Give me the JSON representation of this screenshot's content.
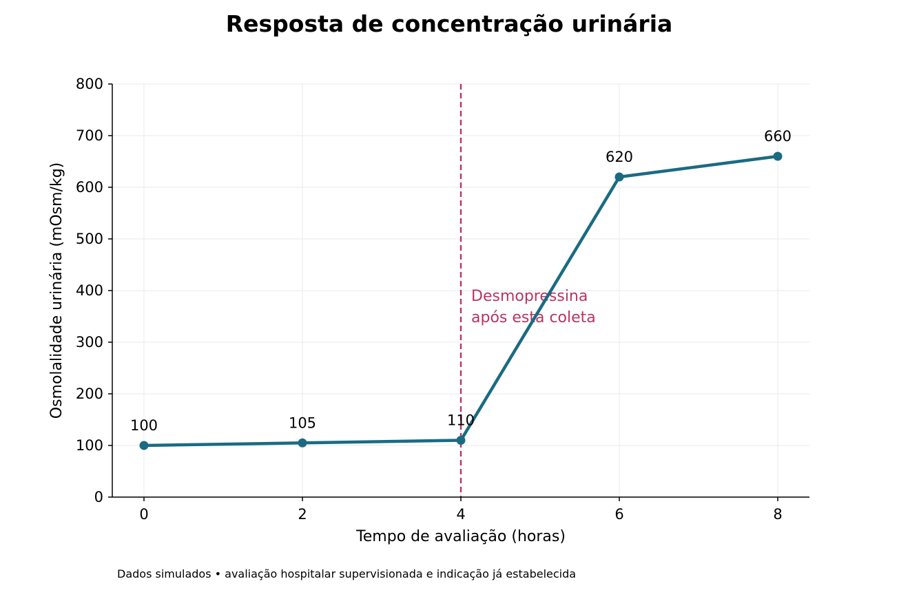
{
  "footnote": "Dados simulados • avaliação hospitalar supervisionada e indicação já estabelecida",
  "colors": {
    "series": "#1a6b82",
    "annotation": "#b73563",
    "grid": "#eeeeee"
  },
  "chart_data": {
    "type": "line",
    "title": "Resposta de concentração urinária",
    "xlabel": "Tempo de avaliação (horas)",
    "ylabel": "Osmolalidade urinária (mOsm/kg)",
    "x": [
      0,
      2,
      4,
      6,
      8
    ],
    "series": [
      {
        "values": [
          100,
          105,
          110,
          620,
          660
        ],
        "color": "#1a6b82",
        "markers": true
      }
    ],
    "data_labels": [
      "100",
      "105",
      "110",
      "620",
      "660"
    ],
    "xlim": [
      -0.4,
      8.4
    ],
    "ylim": [
      0,
      800
    ],
    "xticks": [
      0,
      2,
      4,
      6,
      8
    ],
    "yticks": [
      0,
      100,
      200,
      300,
      400,
      500,
      600,
      700,
      800
    ],
    "grid": true,
    "legend": "none",
    "annotation": {
      "x": 4,
      "line_style": "dashed",
      "color": "#b73563",
      "text_lines": [
        "Desmopressina",
        "após esta coleta"
      ]
    }
  }
}
